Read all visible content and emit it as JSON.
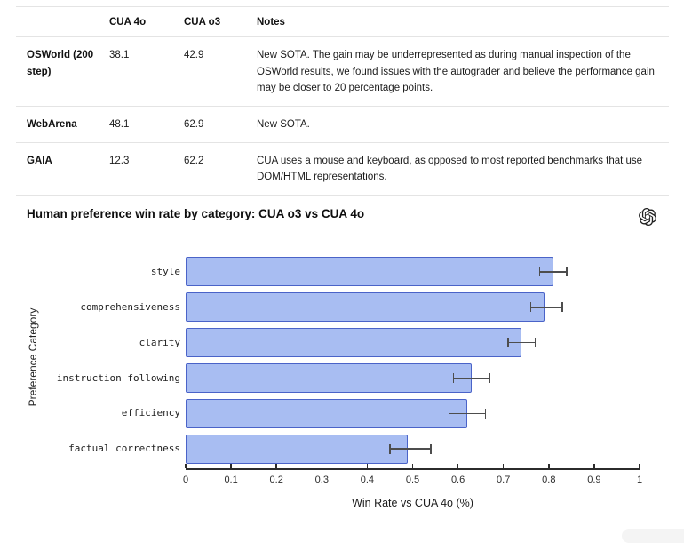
{
  "table": {
    "headers": [
      "",
      "CUA 4o",
      "CUA o3",
      "Notes"
    ],
    "rows": [
      {
        "label": "OSWorld (200 step)",
        "cua_4o": "38.1",
        "cua_o3": "42.9",
        "notes": "New SOTA. The gain may be underrepresented as during manual inspection of the OSWorld results, we found issues with the autograder and believe the performance gain may be closer to 20 percentage points."
      },
      {
        "label": "WebArena",
        "cua_4o": "48.1",
        "cua_o3": "62.9",
        "notes": "New SOTA."
      },
      {
        "label": "GAIA",
        "cua_4o": "12.3",
        "cua_o3": "62.2",
        "notes": "CUA uses a mouse and keyboard, as opposed to most reported benchmarks that use DOM/HTML representations."
      }
    ]
  },
  "chart": {
    "title": "Human preference win rate by category: CUA o3 vs CUA 4o",
    "logo": "openai-logo"
  },
  "chart_data": {
    "type": "bar",
    "orientation": "horizontal",
    "title": "Human preference win rate by category: CUA o3 vs CUA 4o",
    "categories": [
      "style",
      "comprehensiveness",
      "clarity",
      "instruction following",
      "efficiency",
      "factual correctness"
    ],
    "values": [
      0.81,
      0.79,
      0.74,
      0.63,
      0.62,
      0.49
    ],
    "error_low": [
      0.78,
      0.76,
      0.71,
      0.59,
      0.58,
      0.45
    ],
    "error_high": [
      0.84,
      0.83,
      0.77,
      0.67,
      0.66,
      0.54
    ],
    "xlabel": "Win Rate vs CUA 4o (%)",
    "ylabel": "Preference Category",
    "xlim": [
      0,
      1
    ],
    "xticks": [
      "0",
      "0.1",
      "0.2",
      "0.3",
      "0.4",
      "0.5",
      "0.6",
      "0.7",
      "0.8",
      "0.9",
      "1"
    ],
    "grid": false,
    "legend": "none",
    "bar_fill": "#a8bdf2",
    "bar_border": "#4a63c8",
    "error_color": "#4d4d4d"
  }
}
